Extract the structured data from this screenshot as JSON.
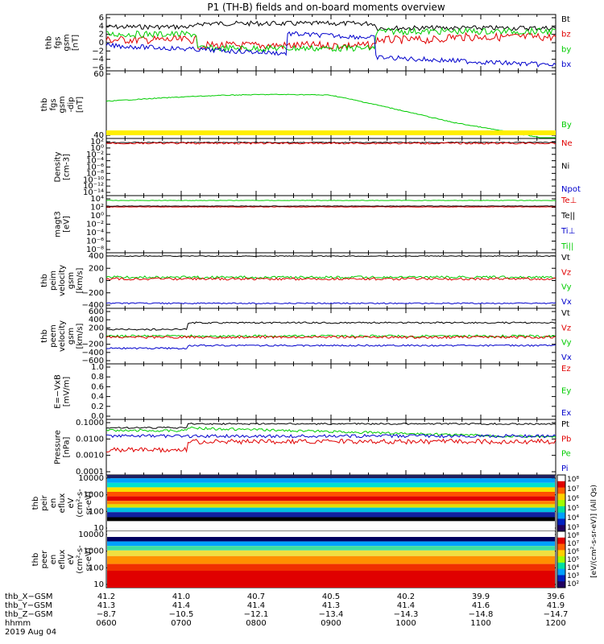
{
  "title": "P1 (TH-B) fields and on-board moments overview",
  "colors": {
    "black": "#000000",
    "red": "#e00000",
    "green": "#00cc00",
    "blue": "#0000cc",
    "yellow": "#ffee00"
  },
  "chart_data": [
    {
      "type": "line",
      "id": "p1",
      "ylabel": [
        "thb",
        "fgs",
        "gsm",
        "[nT]"
      ],
      "yticks": [
        "6",
        "4",
        "2",
        "0",
        "−2",
        "−4",
        "−6"
      ],
      "ylim": [
        -6,
        6
      ],
      "legend": [
        {
          "name": "Bt",
          "color": "black"
        },
        {
          "name": "bz",
          "color": "red"
        },
        {
          "name": "by",
          "color": "green"
        },
        {
          "name": "bx",
          "color": "blue"
        }
      ]
    },
    {
      "type": "line",
      "id": "p2",
      "ylabel": [
        "thb",
        "fgs",
        "gsm",
        "-dip",
        "[nT]"
      ],
      "yticks": [
        "60",
        "40"
      ],
      "ylim": [
        20,
        80
      ],
      "legend": [
        {
          "name": "By",
          "color": "green"
        }
      ]
    },
    {
      "type": "line",
      "id": "p3",
      "ylabel": [
        "Density",
        "[cm-3]"
      ],
      "yticks": [
        "10²",
        "10⁰",
        "10⁻²",
        "10⁻⁴",
        "10⁻⁶",
        "10⁻⁸",
        "10⁻¹⁰",
        "10⁻¹²",
        "10⁻¹⁴"
      ],
      "ylim": [
        1e-14,
        100
      ],
      "scale": "log",
      "legend": [
        {
          "name": "Ne",
          "color": "red"
        },
        {
          "name": "Ni",
          "color": "black"
        },
        {
          "name": "Npot",
          "color": "blue"
        }
      ]
    },
    {
      "type": "line",
      "id": "p4",
      "ylabel": [
        "magt3",
        "[eV]"
      ],
      "yticks": [
        "10⁴",
        "10²",
        "10⁰",
        "10⁻²",
        "10⁻⁴",
        "10⁻⁶",
        "10⁻⁸"
      ],
      "ylim": [
        1e-08,
        10000.0
      ],
      "scale": "log",
      "legend": [
        {
          "name": "Te⊥",
          "color": "red"
        },
        {
          "name": "Te||",
          "color": "black"
        },
        {
          "name": "Ti⊥",
          "color": "blue"
        },
        {
          "name": "Ti||",
          "color": "green"
        }
      ]
    },
    {
      "type": "line",
      "id": "p5",
      "ylabel": [
        "thb",
        "peim",
        "velocity",
        "gsm",
        "[km/s]"
      ],
      "yticks": [
        "400",
        "200",
        "0",
        "−200",
        "−400"
      ],
      "ylim": [
        -400,
        400
      ],
      "legend": [
        {
          "name": "Vt",
          "color": "black"
        },
        {
          "name": "Vz",
          "color": "red"
        },
        {
          "name": "Vy",
          "color": "green"
        },
        {
          "name": "Vx",
          "color": "blue"
        }
      ]
    },
    {
      "type": "line",
      "id": "p6",
      "ylabel": [
        "thb",
        "peem",
        "velocity",
        "gsm",
        "[km/s]"
      ],
      "yticks": [
        "600",
        "400",
        "200",
        "0",
        "−200",
        "−400",
        "−600"
      ],
      "ylim": [
        -600,
        600
      ],
      "legend": [
        {
          "name": "Vt",
          "color": "black"
        },
        {
          "name": "Vz",
          "color": "red"
        },
        {
          "name": "Vy",
          "color": "green"
        },
        {
          "name": "Vx",
          "color": "blue"
        }
      ]
    },
    {
      "type": "line",
      "id": "p7",
      "ylabel": [
        "E=−VxB",
        "[mV/m]"
      ],
      "yticks": [
        "1.0",
        "0.8",
        "0.6",
        "0.4",
        "0.2",
        "0.0"
      ],
      "ylim": [
        0,
        1
      ],
      "legend": [
        {
          "name": "Ez",
          "color": "red"
        },
        {
          "name": "Ey",
          "color": "green"
        },
        {
          "name": "Ex",
          "color": "blue"
        }
      ]
    },
    {
      "type": "line",
      "id": "p8",
      "ylabel": [
        "Pressure",
        "[nPa]"
      ],
      "yticks": [
        "0.1000",
        "0.0100",
        "0.0010",
        "0.0001"
      ],
      "ylim": [
        0.0001,
        0.1
      ],
      "scale": "log",
      "legend": [
        {
          "name": "Pt",
          "color": "black"
        },
        {
          "name": "Pb",
          "color": "red"
        },
        {
          "name": "Pe",
          "color": "green"
        },
        {
          "name": "Pi",
          "color": "blue"
        }
      ]
    },
    {
      "type": "heatmap",
      "id": "p9",
      "ylabel": [
        "thb",
        "peir",
        "en",
        "eflux",
        "eV",
        "(cm²-s-",
        "sr-eV)"
      ],
      "yticks": [
        "10000",
        "1000",
        "100",
        "10"
      ],
      "ylim": [
        5,
        20000
      ],
      "scale": "log"
    },
    {
      "type": "heatmap",
      "id": "p10",
      "ylabel": [
        "thb",
        "peer",
        "en",
        "eflux",
        "eV",
        "(cm²-s-",
        "sr-eV)"
      ],
      "yticks": [
        "10000",
        "1000",
        "100",
        "10"
      ],
      "ylim": [
        5,
        20000
      ],
      "scale": "log"
    }
  ],
  "colorbar": {
    "ticks_upper": [
      "10⁸",
      "10⁷",
      "10⁶",
      "10⁵",
      "10⁴",
      "10³"
    ],
    "ticks_lower": [
      "10⁸",
      "10⁷",
      "10⁶",
      "10⁵",
      "10⁴",
      "10³",
      "10²"
    ],
    "label": "[eV/(cm²-s-sr-eV)] (All Qs)",
    "label2": "[eV/(cm²-s-sr-eV)]"
  },
  "xaxis": {
    "rows": [
      {
        "label": "thb_X−GSM",
        "values": [
          "41.2",
          "41.0",
          "40.7",
          "40.5",
          "40.2",
          "39.9",
          "39.6"
        ]
      },
      {
        "label": "thb_Y−GSM",
        "values": [
          "41.3",
          "41.4",
          "41.4",
          "41.3",
          "41.4",
          "41.6",
          "41.9"
        ]
      },
      {
        "label": "thb_Z−GSM",
        "values": [
          "−8.7",
          "−10.5",
          "−12.1",
          "−13.4",
          "−14.3",
          "−14.8",
          "−14.7"
        ]
      },
      {
        "label": "hhmm",
        "values": [
          "0600",
          "0700",
          "0800",
          "0900",
          "1000",
          "1100",
          "1200"
        ]
      }
    ],
    "date": "2019 Aug 04"
  }
}
